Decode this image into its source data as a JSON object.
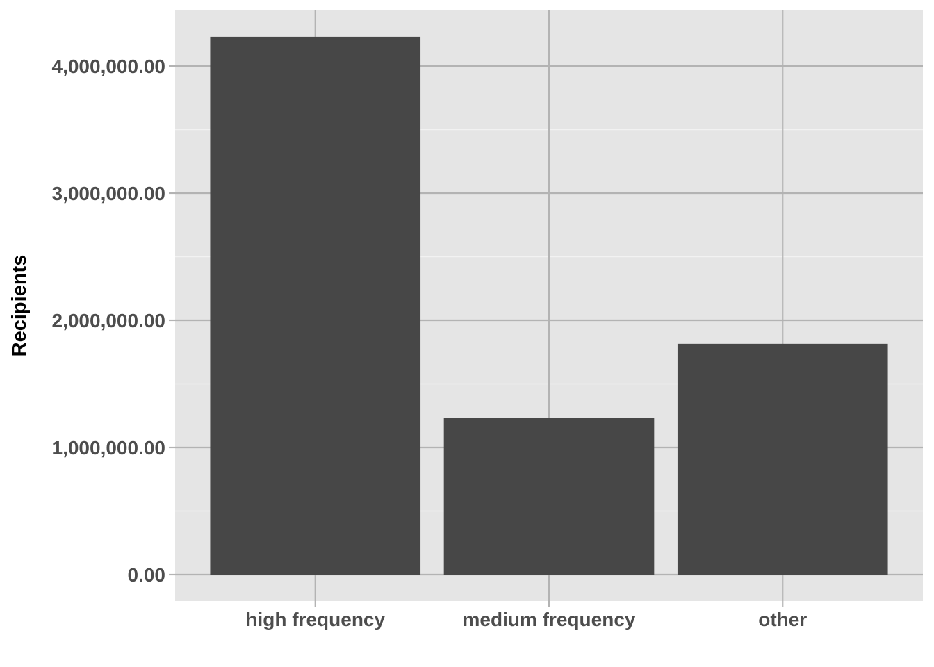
{
  "chart_data": {
    "type": "bar",
    "categories": [
      "high frequency",
      "medium frequency",
      "other"
    ],
    "values": [
      4230000,
      1230000,
      1815000
    ],
    "ylabel": "Recipients",
    "xlabel": "",
    "ylim": [
      0,
      4420000
    ],
    "yticks": [
      0,
      1000000,
      2000000,
      3000000,
      4000000
    ],
    "ytick_labels": [
      "0.00",
      "1,000,000.00",
      "2,000,000.00",
      "3,000,000.00",
      "4,000,000.00"
    ],
    "grid": true,
    "legend": "none"
  },
  "colors": {
    "panel": "#e5e5e5",
    "grid_major": "#b3b3b3",
    "grid_minor": "#f2f2f2",
    "bar": "#474747",
    "tick_text": "#4d4d4d",
    "axis_title": "#000000"
  }
}
